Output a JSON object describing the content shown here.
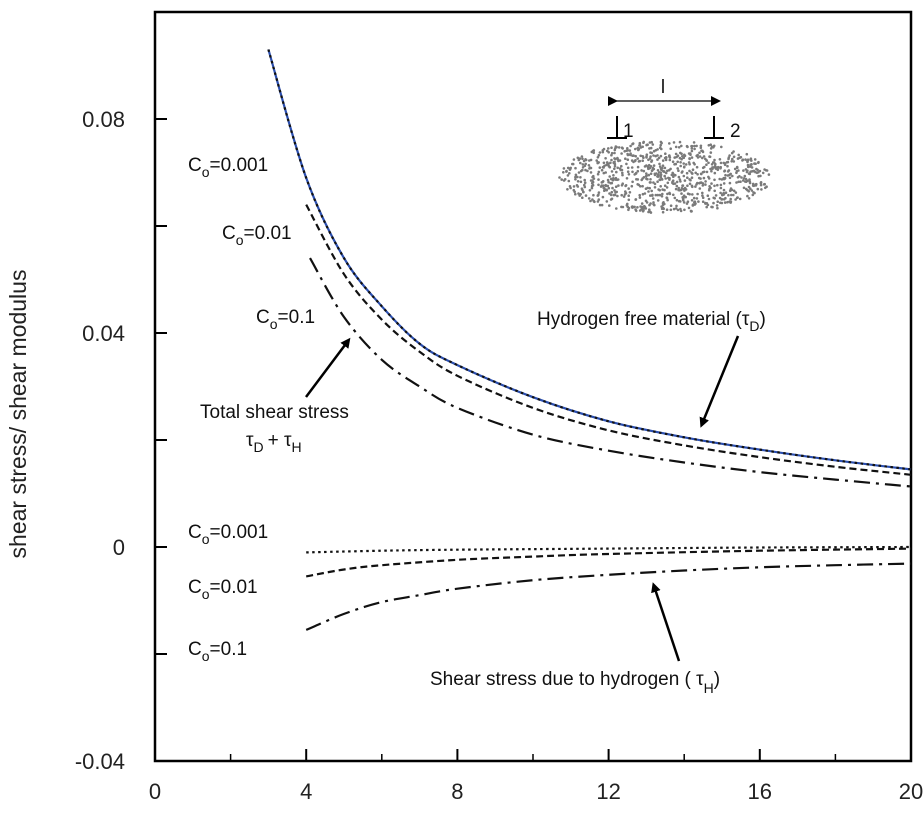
{
  "chart_data": {
    "type": "line",
    "ylabel": "shear stress/ shear modulus",
    "xlim": [
      0,
      20
    ],
    "ylim": [
      -0.04,
      0.1
    ],
    "xticks": [
      "0",
      "4",
      "8",
      "12",
      "16",
      "20"
    ],
    "yticks": [
      "-0.04",
      "0",
      "0.04",
      "0.08"
    ],
    "x": [
      3,
      4,
      5,
      6,
      7,
      8,
      10,
      12,
      14,
      16,
      18,
      20
    ],
    "series": [
      {
        "curve": "hydrogen-free",
        "style": "solid",
        "color": "#2b4fb0",
        "x": [
          3,
          4,
          5,
          6,
          7,
          8,
          10,
          12,
          14,
          16,
          18,
          20
        ],
        "values": [
          0.093,
          0.069,
          0.054,
          0.045,
          0.038,
          0.034,
          0.028,
          0.0235,
          0.0205,
          0.0182,
          0.0162,
          0.0145
        ]
      },
      {
        "curve": "total",
        "style": "dotted",
        "color": "#111111",
        "x": [
          3,
          4,
          5,
          6,
          7,
          8,
          10,
          12,
          14,
          16,
          18,
          20
        ],
        "values": [
          0.093,
          0.069,
          0.054,
          0.045,
          0.038,
          0.034,
          0.028,
          0.0235,
          0.0205,
          0.0182,
          0.0162,
          0.0145
        ]
      },
      {
        "curve": "total",
        "style": "dashed",
        "color": "#111111",
        "x": [
          4,
          5,
          6,
          7,
          8,
          10,
          12,
          14,
          16,
          18,
          20
        ],
        "values": [
          0.064,
          0.051,
          0.0425,
          0.0365,
          0.032,
          0.026,
          0.0218,
          0.019,
          0.0168,
          0.015,
          0.0135
        ]
      },
      {
        "curve": "total",
        "style": "dashdot",
        "color": "#111111",
        "x": [
          4.1,
          5,
          6,
          7,
          8,
          10,
          12,
          14,
          16,
          18,
          20
        ],
        "values": [
          0.054,
          0.043,
          0.035,
          0.03,
          0.026,
          0.021,
          0.018,
          0.0158,
          0.014,
          0.0126,
          0.0113
        ]
      },
      {
        "curve": "hydrogen",
        "style": "dotted",
        "color": "#111111",
        "x": [
          4,
          6,
          8,
          12,
          16,
          20
        ],
        "values": [
          -0.001,
          -0.0007,
          -0.0005,
          -0.0003,
          -0.0001,
          0.0
        ]
      },
      {
        "curve": "hydrogen",
        "style": "dashed",
        "color": "#111111",
        "x": [
          4,
          5,
          6,
          8,
          10,
          12,
          16,
          20
        ],
        "values": [
          -0.0055,
          -0.0042,
          -0.0034,
          -0.0024,
          -0.0018,
          -0.0013,
          -0.0007,
          -0.0003
        ]
      },
      {
        "curve": "hydrogen",
        "style": "dashdot",
        "color": "#111111",
        "x": [
          4,
          5,
          6,
          7,
          8,
          10,
          12,
          14,
          16,
          18,
          20
        ],
        "values": [
          -0.0155,
          -0.0125,
          -0.0103,
          -0.009,
          -0.0078,
          -0.0062,
          -0.0052,
          -0.0044,
          -0.0038,
          -0.0034,
          -0.0031
        ]
      }
    ],
    "annotations": {
      "co_upper": [
        "C",
        "o",
        "=0.001",
        "=0.01",
        "=0.1"
      ],
      "co_upper_1": {
        "base": "C",
        "sub": "o",
        "rest": "=0.001"
      },
      "co_upper_2": {
        "base": "C",
        "sub": "o",
        "rest": "=0.01"
      },
      "co_upper_3": {
        "base": "C",
        "sub": "o",
        "rest": "=0.1"
      },
      "co_lower_1": {
        "base": "C",
        "sub": "o",
        "rest": "=0.001"
      },
      "co_lower_2": {
        "base": "C",
        "sub": "o",
        "rest": "=0.01"
      },
      "co_lower_3": {
        "base": "C",
        "sub": "o",
        "rest": "=0.1"
      },
      "total_line1": "Total shear stress",
      "total_line2_a": "τ",
      "total_line2_b": "D",
      "total_line2_c": "+  τ",
      "total_line2_d": "H",
      "hfree_a": "Hydrogen free material (τ",
      "hfree_b": "D",
      "hfree_c": ")",
      "hyd_a": "Shear stress due to hydrogen  ( τ",
      "hyd_b": "H",
      "hyd_c": ")"
    },
    "inset": {
      "spacing_label": "l",
      "dislocation_1": "1",
      "dislocation_2": "2"
    }
  }
}
